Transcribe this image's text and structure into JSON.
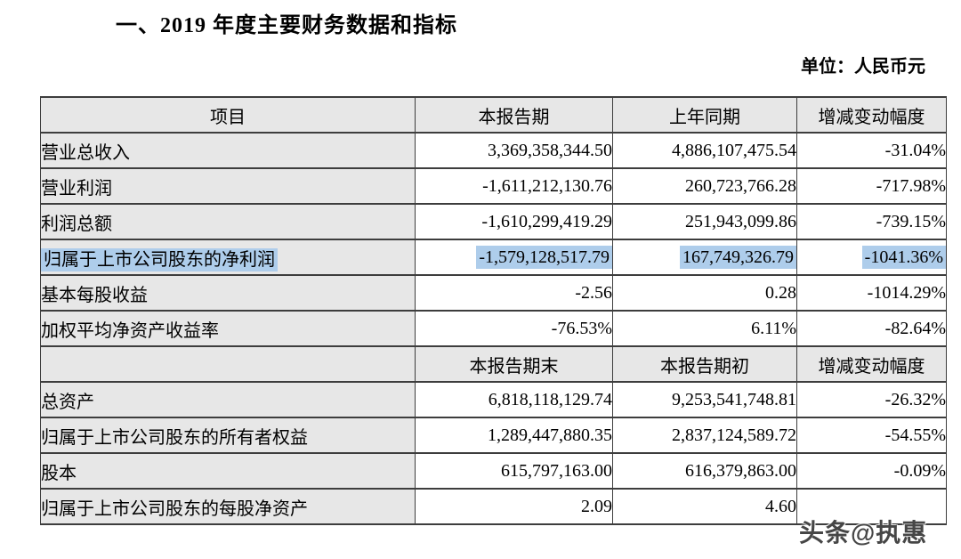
{
  "page": {
    "section_title": "一、2019 年度主要财务数据和指标",
    "unit_label": "单位：人民币元",
    "watermark": "头条@执惠"
  },
  "colors": {
    "header_and_label_bg": "#e7e7e7",
    "selection_highlight": "#aecdeb",
    "table_border": "#3d3d3d",
    "watermark_text": "#464646"
  },
  "table": {
    "header_row_1": [
      "项目",
      "本报告期",
      "上年同期",
      "增减变动幅度"
    ],
    "header_row_2": [
      "",
      "本报告期末",
      "本报告期初",
      "增减变动幅度"
    ],
    "rows": [
      {
        "label": "营业总收入",
        "current": "3,369,358,344.50",
        "prior": "4,886,107,475.54",
        "change": "-31.04%"
      },
      {
        "label": "营业利润",
        "current": "-1,611,212,130.76",
        "prior": "260,723,766.28",
        "change": "-717.98%"
      },
      {
        "label": "利润总额",
        "current": "-1,610,299,419.29",
        "prior": "251,943,099.86",
        "change": "-739.15%"
      },
      {
        "label": "归属于上市公司股东的净利润",
        "current": "-1,579,128,517.79",
        "prior": "167,749,326.79",
        "change": "-1041.36%",
        "highlighted": true
      },
      {
        "label": "基本每股收益",
        "current": "-2.56",
        "prior": "0.28",
        "change": "-1014.29%"
      },
      {
        "label": "加权平均净资产收益率",
        "current": "-76.53%",
        "prior": "6.11%",
        "change": "-82.64%"
      },
      {
        "label": "总资产",
        "current": "6,818,118,129.74",
        "prior": "9,253,541,748.81",
        "change": "-26.32%"
      },
      {
        "label": "归属于上市公司股东的所有者权益",
        "current": "1,289,447,880.35",
        "prior": "2,837,124,589.72",
        "change": "-54.55%"
      },
      {
        "label": "股本",
        "current": "615,797,163.00",
        "prior": "616,379,863.00",
        "change": "-0.09%"
      },
      {
        "label": "归属于上市公司股东的每股净资产",
        "current": "2.09",
        "prior": "4.60",
        "change": ""
      }
    ]
  }
}
